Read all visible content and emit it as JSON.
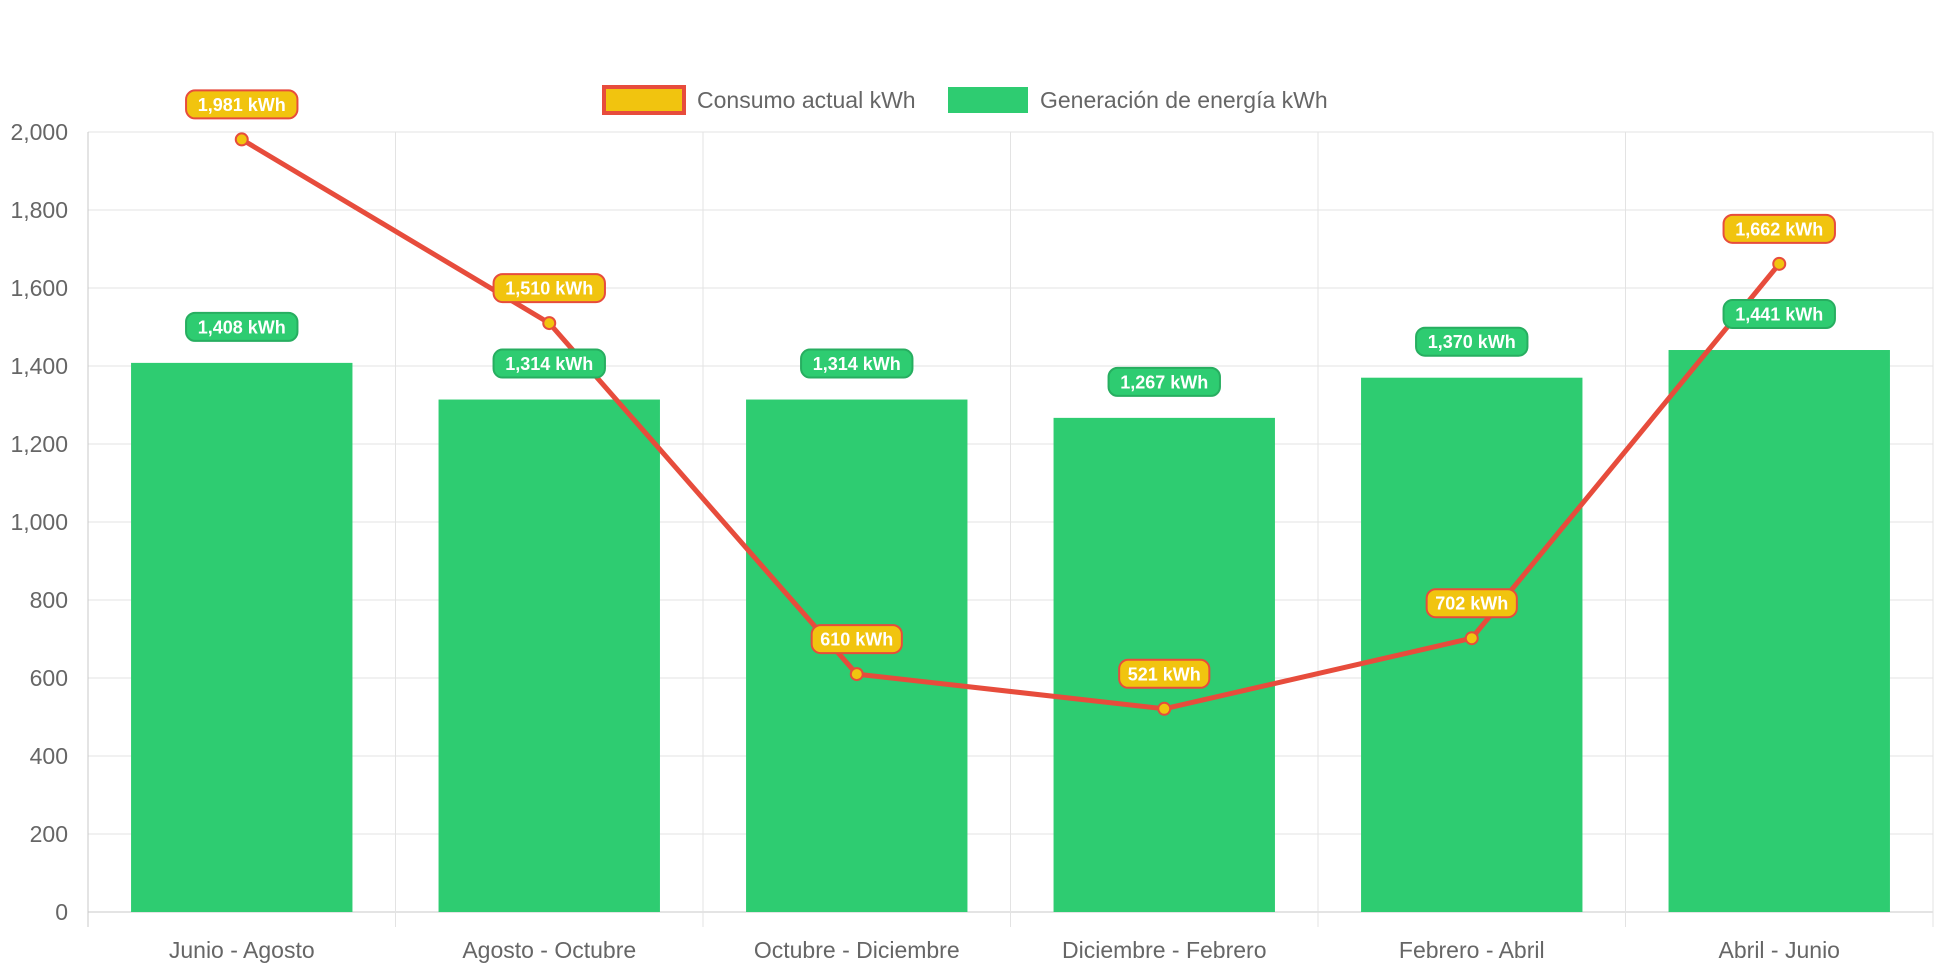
{
  "chart_data": {
    "type": "bar",
    "categories": [
      "Junio - Agosto",
      "Agosto - Octubre",
      "Octubre - Diciembre",
      "Diciembre - Febrero",
      "Febrero - Abril",
      "Abril - Junio"
    ],
    "series": [
      {
        "name": "Consumo actual kWh",
        "type": "line",
        "values": [
          1981,
          1510,
          610,
          521,
          702,
          1662
        ],
        "labels": [
          "1,981 kWh",
          "1,510 kWh",
          "610 kWh",
          "521 kWh",
          "702 kWh",
          "1,662 kWh"
        ],
        "color": "#e74c3c",
        "fill_color": "#f1c40f"
      },
      {
        "name": "Generación de energía kWh",
        "type": "bar",
        "values": [
          1408,
          1314,
          1314,
          1267,
          1370,
          1441
        ],
        "labels": [
          "1,408 kWh",
          "1,314 kWh",
          "1,314 kWh",
          "1,267 kWh",
          "1,370 kWh",
          "1,441 kWh"
        ],
        "color": "#2ecc71"
      }
    ],
    "ylim": [
      0,
      2000
    ],
    "yticks": [
      0,
      200,
      400,
      600,
      800,
      1000,
      1200,
      1400,
      1600,
      1800,
      2000
    ],
    "ytick_labels": [
      "0",
      "200",
      "400",
      "600",
      "800",
      "1,000",
      "1,200",
      "1,400",
      "1,600",
      "1,800",
      "2,000"
    ],
    "legend": "top-center",
    "grid": true,
    "title": "",
    "xlabel": "",
    "ylabel": ""
  }
}
